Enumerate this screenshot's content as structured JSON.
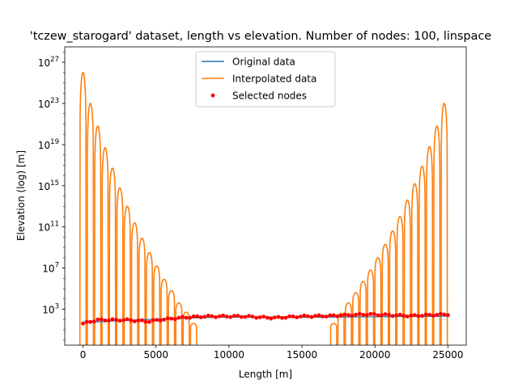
{
  "chart_data": {
    "type": "line",
    "title": "'tczew_starogard' dataset, length vs elevation. Number of nodes: 100, linspace",
    "xlabel": "Length [m]",
    "ylabel": "Elevation (log) [m]",
    "xlim": [
      -1250,
      26250
    ],
    "ylim_log10": [
      -0.5,
      28.5
    ],
    "y_scale": "log",
    "x_ticks": [
      0,
      5000,
      10000,
      15000,
      20000,
      25000
    ],
    "x_tick_labels": [
      "0",
      "5000",
      "10000",
      "15000",
      "20000",
      "25000"
    ],
    "y_ticks_log10": [
      3,
      7,
      11,
      15,
      19,
      23,
      27
    ],
    "y_tick_labels": [
      {
        "base": "10",
        "exp": "3"
      },
      {
        "base": "10",
        "exp": "7"
      },
      {
        "base": "10",
        "exp": "11"
      },
      {
        "base": "10",
        "exp": "15"
      },
      {
        "base": "10",
        "exp": "19"
      },
      {
        "base": "10",
        "exp": "23"
      },
      {
        "base": "10",
        "exp": "27"
      }
    ],
    "legend_position": "top-center",
    "grid": false,
    "series": [
      {
        "name": "Original data",
        "color": "#1f77b4",
        "style": "line",
        "x": [
          0,
          5000,
          10000,
          15000,
          20000,
          25000
        ],
        "y": [
          50,
          110,
          175,
          160,
          180,
          210
        ]
      },
      {
        "name": "Interpolated data",
        "color": "#ff7f0e",
        "style": "line",
        "note_shape": "oscillating Runge-type peaks between nodes",
        "peak_x": [
          0,
          505,
          1010,
          1515,
          2020,
          2525,
          3030,
          3535,
          4040,
          4545,
          5050,
          5555,
          6060,
          6565,
          7070,
          7575,
          17170,
          17675,
          18180,
          18685,
          19190,
          19695,
          20200,
          20705,
          21210,
          21715,
          22220,
          22725,
          23230,
          23735,
          24240,
          24745
        ],
        "peak_log10_y": [
          26.0,
          23.0,
          20.8,
          18.7,
          16.7,
          14.8,
          13.0,
          11.4,
          9.9,
          8.5,
          7.2,
          5.9,
          4.8,
          3.6,
          2.7,
          1.6,
          1.6,
          2.6,
          3.6,
          4.6,
          5.7,
          6.8,
          8.0,
          9.3,
          10.6,
          12.0,
          13.6,
          15.2,
          16.9,
          18.8,
          20.8,
          23.0
        ]
      },
      {
        "name": "Selected nodes",
        "color": "#ff0000",
        "style": "markers",
        "x_range": [
          0,
          25000
        ],
        "count": 100,
        "log10_y_profile": [
          [
            0,
            1.6
          ],
          [
            1000,
            1.95
          ],
          [
            3000,
            1.95
          ],
          [
            4500,
            1.8
          ],
          [
            5500,
            2.0
          ],
          [
            7000,
            2.2
          ],
          [
            8500,
            2.3
          ],
          [
            11000,
            2.3
          ],
          [
            13000,
            2.15
          ],
          [
            15000,
            2.3
          ],
          [
            17000,
            2.35
          ],
          [
            19500,
            2.5
          ],
          [
            22500,
            2.35
          ],
          [
            25000,
            2.5
          ]
        ]
      }
    ]
  }
}
